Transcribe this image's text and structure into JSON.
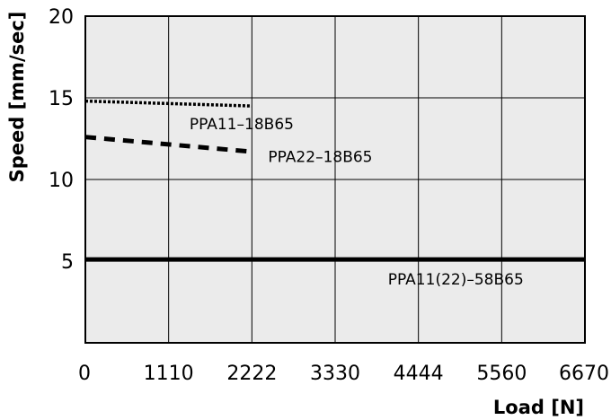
{
  "chart_data": {
    "type": "line",
    "xlabel": "Load [N]",
    "ylabel": "Speed [mm/sec]",
    "x_ticks": [
      "0",
      "1110",
      "2222",
      "3330",
      "4444",
      "5560",
      "6670"
    ],
    "y_ticks": [
      "5",
      "10",
      "15",
      "20"
    ],
    "xlim": [
      0,
      6670
    ],
    "ylim": [
      0,
      20
    ],
    "grid": true,
    "background": "#ebebeb",
    "series": [
      {
        "name": "PPA11–18B65",
        "style": "dotted",
        "stroke_weight": "medium",
        "color": "#000000",
        "points": [
          [
            0,
            14.8
          ],
          [
            2222,
            14.5
          ]
        ],
        "label_anchor": [
          1390,
          13.4
        ]
      },
      {
        "name": "PPA22–18B65",
        "style": "dashed",
        "stroke_weight": "thick",
        "color": "#000000",
        "points": [
          [
            0,
            12.6
          ],
          [
            2222,
            11.7
          ]
        ],
        "label_anchor": [
          2440,
          11.4
        ]
      },
      {
        "name": "PPA11(22)–58B65",
        "style": "solid",
        "stroke_weight": "thick",
        "color": "#000000",
        "points": [
          [
            0,
            5.1
          ],
          [
            6670,
            5.1
          ]
        ],
        "label_anchor": [
          4040,
          3.9
        ]
      }
    ]
  }
}
